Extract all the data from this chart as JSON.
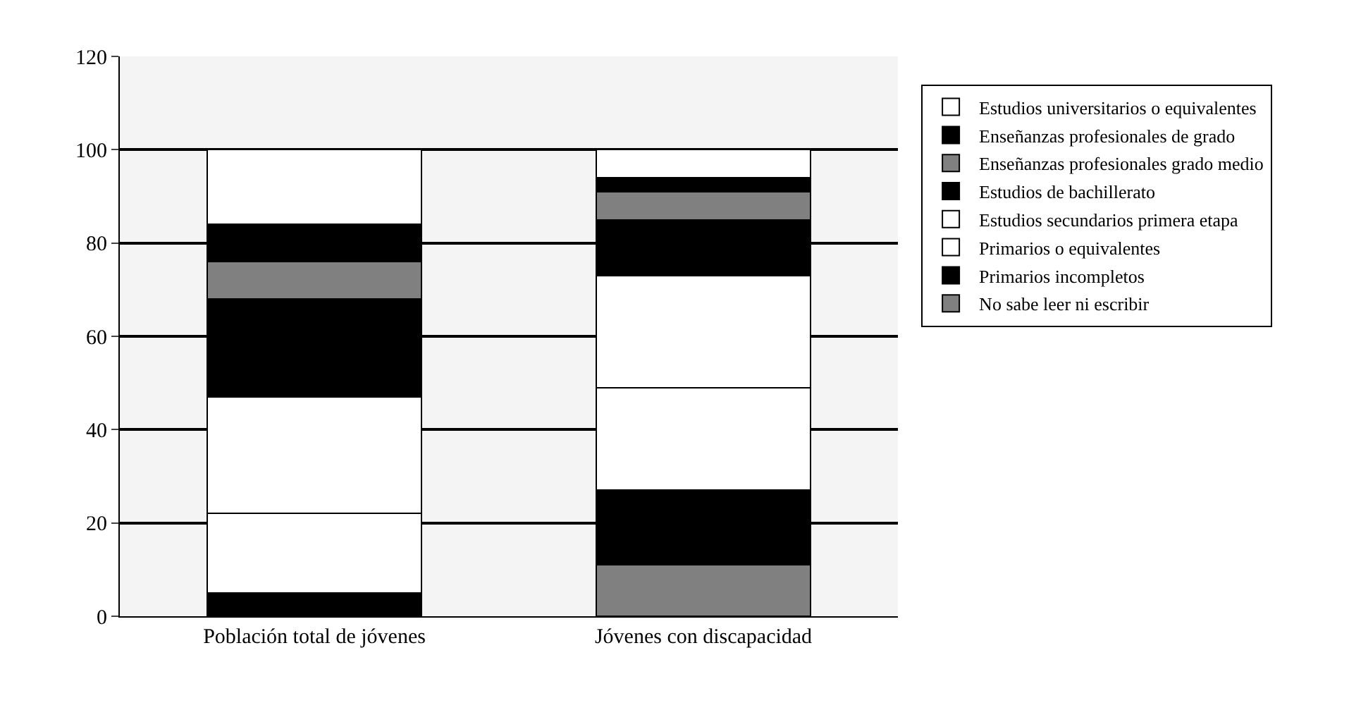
{
  "chart_data": {
    "type": "bar",
    "stacked": true,
    "categories": [
      "Población total de jóvenes",
      "Jóvenes con discapacidad"
    ],
    "series": [
      {
        "name": "No sabe leer ni escribir",
        "color": "#808080",
        "values": [
          0,
          11
        ]
      },
      {
        "name": "Primarios incompletos",
        "color": "#000000",
        "values": [
          5,
          16
        ]
      },
      {
        "name": "Primarios o equivalentes",
        "color": "#ffffff",
        "values": [
          17,
          22
        ]
      },
      {
        "name": "Estudios secundarios primera etapa",
        "color": "#ffffff",
        "values": [
          25,
          24
        ]
      },
      {
        "name": "Estudios de bachillerato",
        "color": "#000000",
        "values": [
          21,
          12
        ]
      },
      {
        "name": "Enseñanzas profesionales grado medio",
        "color": "#808080",
        "values": [
          8,
          6
        ]
      },
      {
        "name": "Enseñanzas profesionales de grado",
        "color": "#000000",
        "values": [
          8,
          3
        ]
      },
      {
        "name": "Estudios universitarios o equivalentes",
        "color": "#ffffff",
        "values": [
          16,
          6
        ]
      }
    ],
    "ylim": [
      0,
      120
    ],
    "yticks": [
      0,
      20,
      40,
      60,
      80,
      100,
      120
    ],
    "grid": "y",
    "legend": "right"
  }
}
